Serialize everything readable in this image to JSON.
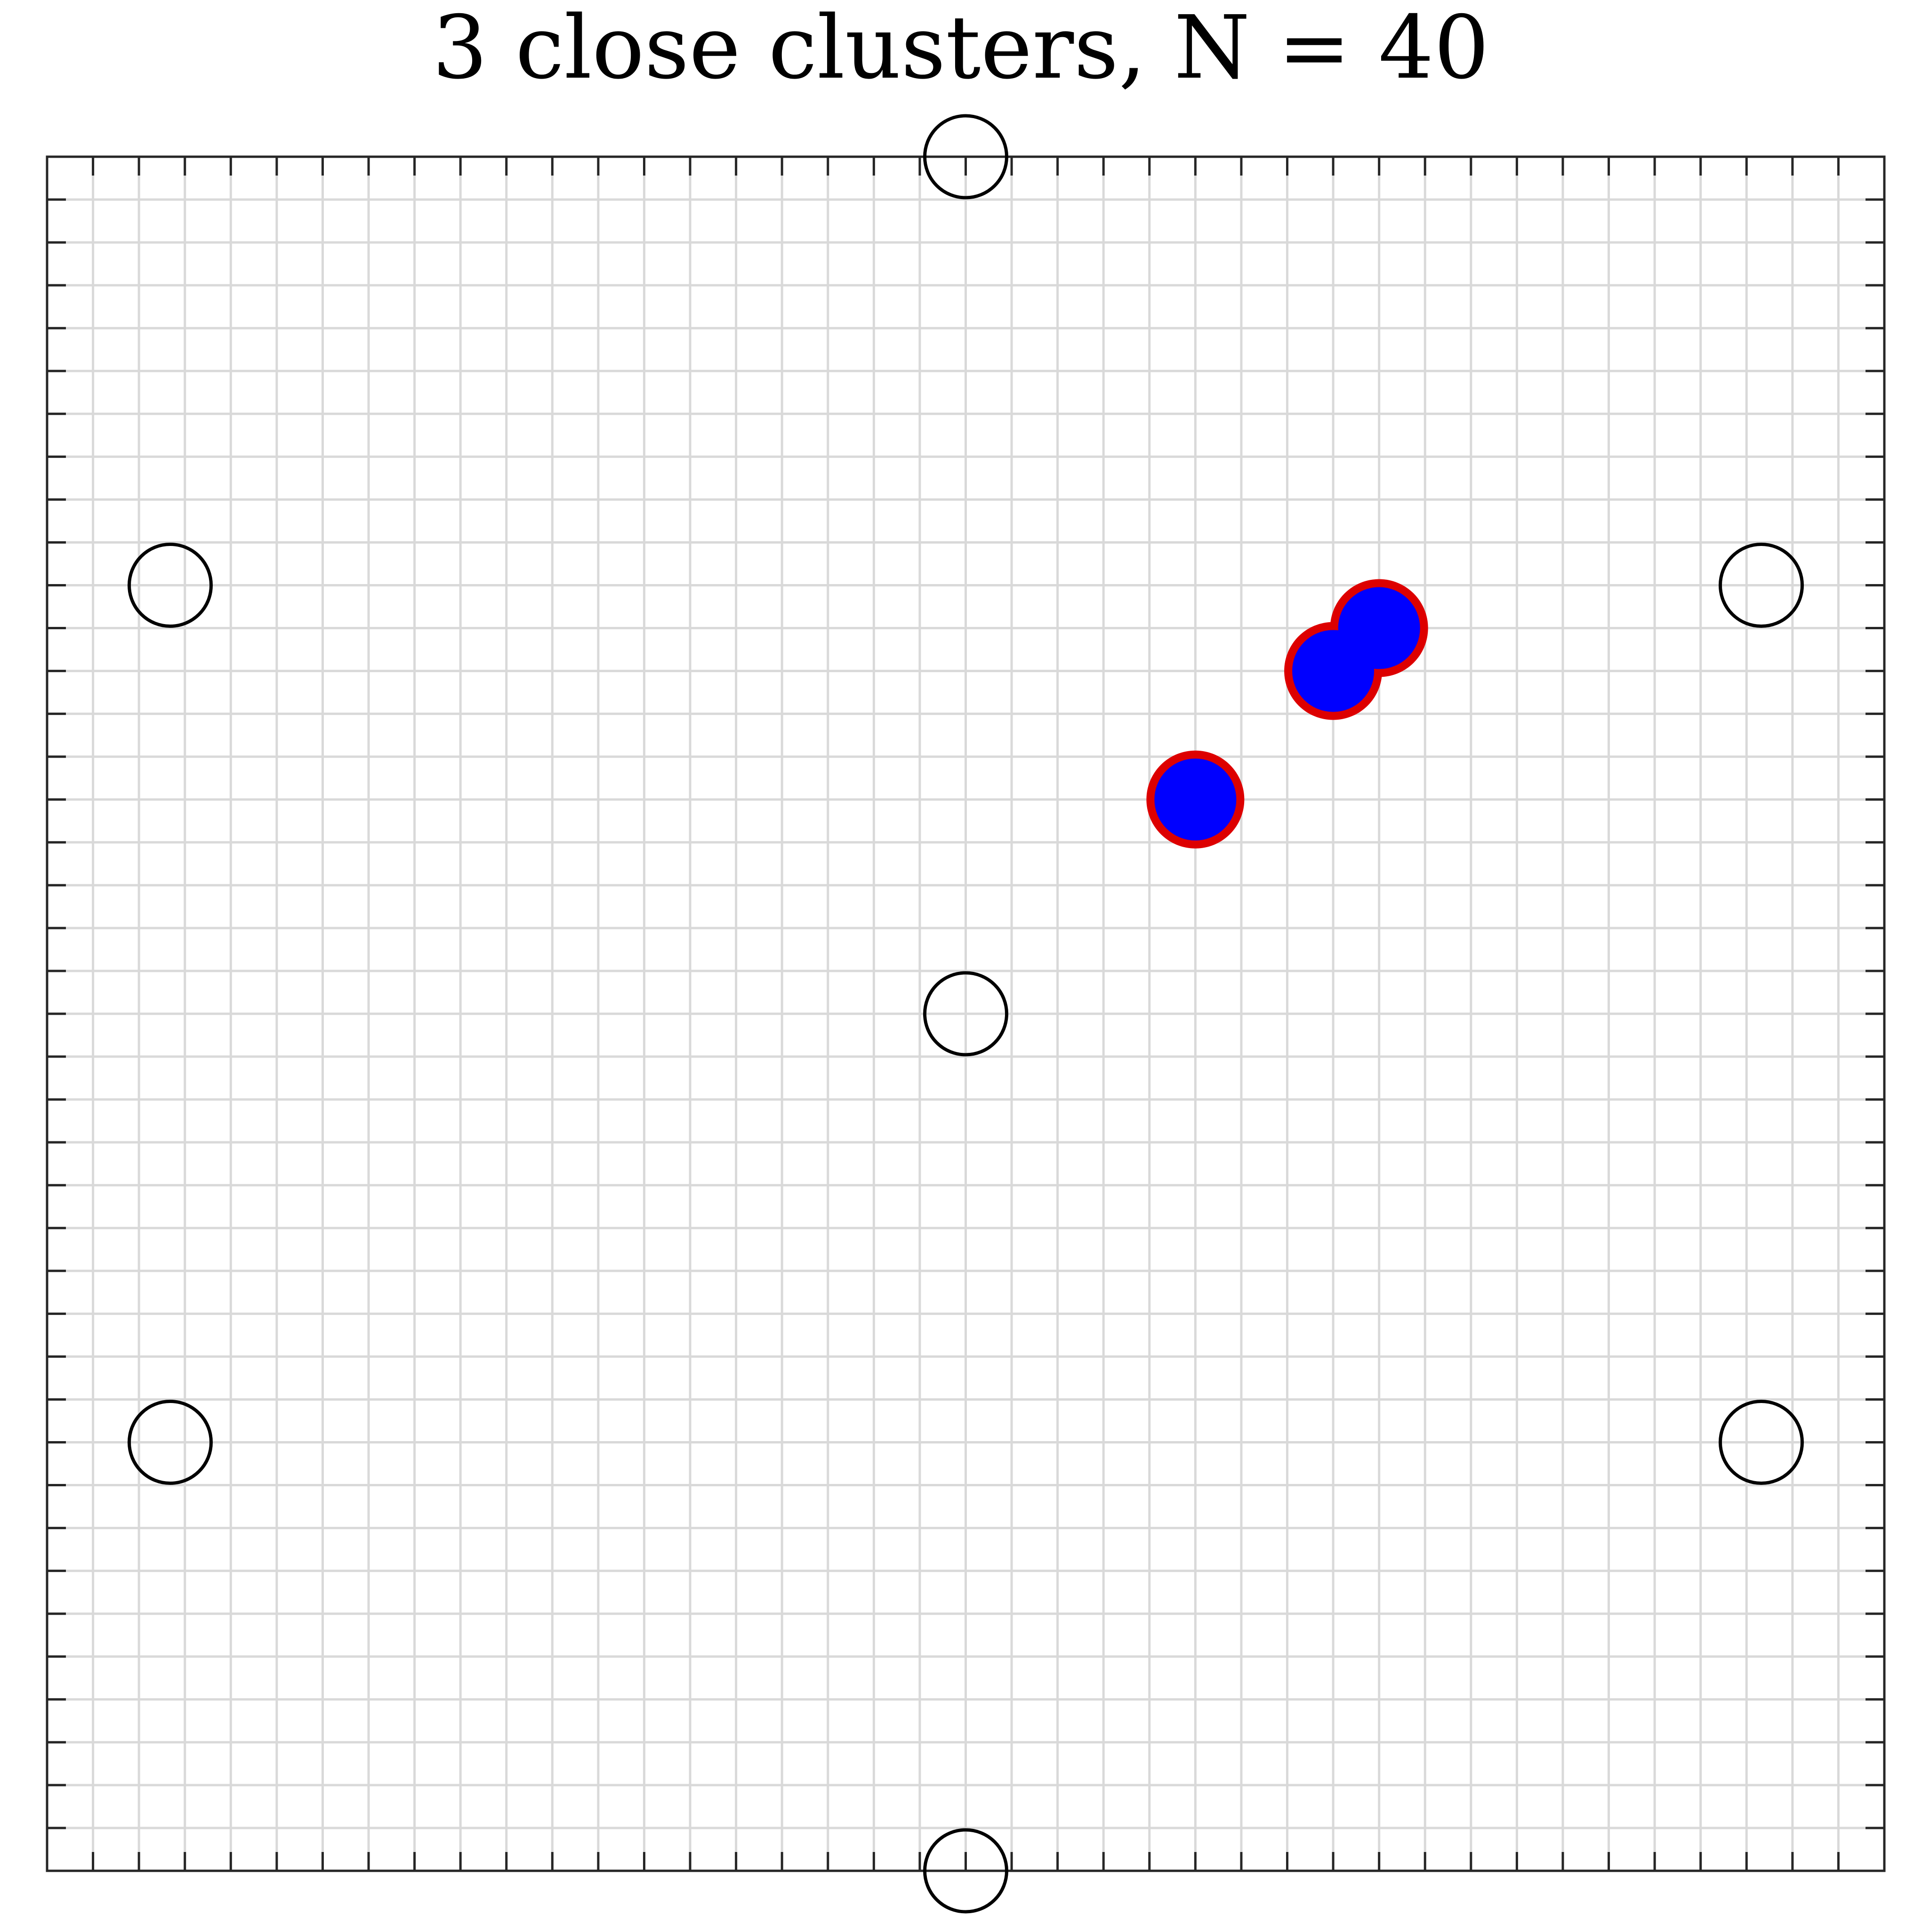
{
  "chart_data": {
    "type": "scatter",
    "title": "3 close clusters, N = 40",
    "xlabel": "",
    "ylabel": "",
    "xlim": [
      -1,
      1
    ],
    "ylim": [
      -1,
      1
    ],
    "grid": true,
    "tick_labels_visible": false,
    "minor_grid_step": 0.05,
    "series": [
      {
        "marker": "open-circle",
        "points": [
          {
            "x": 0.0,
            "y": 1.0
          },
          {
            "x": -0.866,
            "y": 0.5
          },
          {
            "x": 0.866,
            "y": 0.5
          },
          {
            "x": 0.0,
            "y": 0.0
          },
          {
            "x": -0.866,
            "y": -0.5
          },
          {
            "x": 0.866,
            "y": -0.5
          },
          {
            "x": 0.0,
            "y": -1.0
          }
        ]
      },
      {
        "marker": "filled-circle",
        "points": [
          {
            "x": 0.25,
            "y": 0.25
          },
          {
            "x": 0.4,
            "y": 0.4
          },
          {
            "x": 0.45,
            "y": 0.45
          }
        ]
      }
    ],
    "colors": {
      "open_marker_edge": "#000000",
      "cluster_fill": "#0000ff",
      "cluster_edge": "#dd0000",
      "grid": "#d9d9d9",
      "axes": "#262626"
    }
  }
}
